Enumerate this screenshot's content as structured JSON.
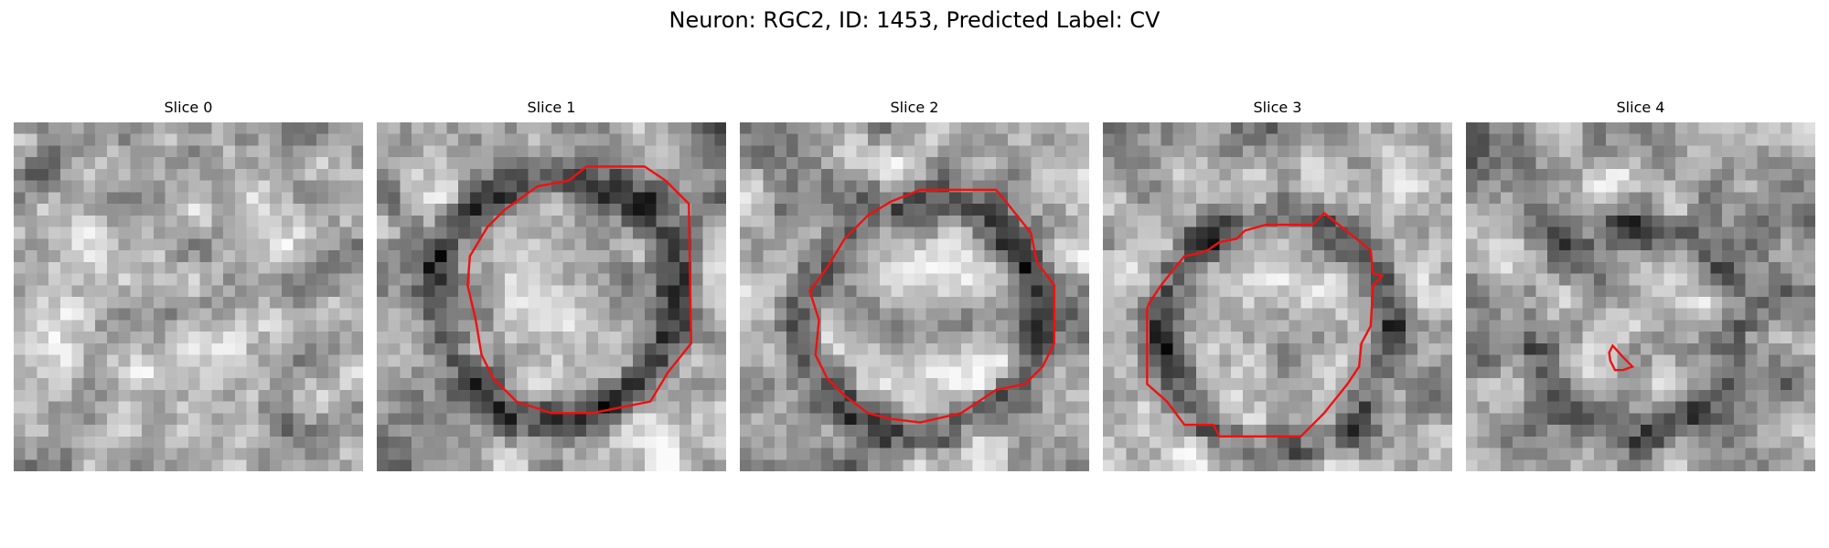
{
  "figure": {
    "title": "Neuron: RGC2, ID: 1453, Predicted Label: CV"
  },
  "style": {
    "contour_color": "#ee1111",
    "colormap": "gray"
  },
  "panels": [
    {
      "title": "Slice 0",
      "image": {
        "rows": 30,
        "cols": 30,
        "seed": 11,
        "ring": null,
        "mean": 0.66
      },
      "contour": []
    },
    {
      "title": "Slice 1",
      "image": {
        "rows": 30,
        "cols": 30,
        "seed": 23,
        "ring": {
          "cx": 14.8,
          "cy": 14.5,
          "r": 10.5,
          "dark": 0.45
        },
        "mean": 0.66
      },
      "contour": [
        [
          18.0,
          3.8
        ],
        [
          23.0,
          3.8
        ],
        [
          24.8,
          5.0
        ],
        [
          26.8,
          7.0
        ],
        [
          27.0,
          19.0
        ],
        [
          25.0,
          21.5
        ],
        [
          23.5,
          24.0
        ],
        [
          21.0,
          24.5
        ],
        [
          18.5,
          25.0
        ],
        [
          15.0,
          25.0
        ],
        [
          12.0,
          24.0
        ],
        [
          10.0,
          22.0
        ],
        [
          9.0,
          20.0
        ],
        [
          8.5,
          17.0
        ],
        [
          7.8,
          14.0
        ],
        [
          8.0,
          11.5
        ],
        [
          9.5,
          9.0
        ],
        [
          11.0,
          7.5
        ],
        [
          13.8,
          5.5
        ],
        [
          16.5,
          5.0
        ]
      ]
    },
    {
      "title": "Slice 2",
      "image": {
        "rows": 30,
        "cols": 30,
        "seed": 37,
        "ring": {
          "cx": 15.0,
          "cy": 16.3,
          "r": 10.3,
          "dark": 0.4
        },
        "mean": 0.66
      },
      "contour": [
        [
          15.5,
          5.8
        ],
        [
          22.0,
          5.8
        ],
        [
          23.0,
          7.0
        ],
        [
          25.0,
          9.5
        ],
        [
          25.5,
          12.0
        ],
        [
          27.0,
          14.0
        ],
        [
          27.0,
          19.0
        ],
        [
          26.0,
          21.0
        ],
        [
          24.5,
          22.5
        ],
        [
          22.0,
          23.0
        ],
        [
          19.0,
          25.0
        ],
        [
          15.5,
          25.8
        ],
        [
          13.0,
          25.5
        ],
        [
          11.0,
          25.0
        ],
        [
          9.0,
          23.5
        ],
        [
          7.5,
          22.0
        ],
        [
          6.5,
          20.0
        ],
        [
          6.8,
          17.0
        ],
        [
          6.0,
          14.5
        ],
        [
          7.5,
          12.5
        ],
        [
          9.0,
          10.0
        ],
        [
          11.0,
          8.0
        ],
        [
          13.0,
          6.8
        ]
      ]
    },
    {
      "title": "Slice 3",
      "image": {
        "rows": 30,
        "cols": 30,
        "seed": 53,
        "ring": {
          "cx": 14.5,
          "cy": 17.5,
          "r": 10.0,
          "dark": 0.4
        },
        "mean": 0.7
      },
      "contour": [
        [
          19.0,
          7.8
        ],
        [
          23.0,
          11.0
        ],
        [
          23.2,
          13.0
        ],
        [
          24.0,
          13.2
        ],
        [
          23.2,
          14.0
        ],
        [
          23.0,
          17.5
        ],
        [
          22.2,
          19.0
        ],
        [
          22.0,
          21.0
        ],
        [
          21.0,
          22.5
        ],
        [
          19.0,
          25.0
        ],
        [
          17.0,
          27.0
        ],
        [
          10.0,
          27.0
        ],
        [
          9.5,
          26.0
        ],
        [
          7.0,
          26.0
        ],
        [
          5.5,
          24.0
        ],
        [
          3.8,
          22.5
        ],
        [
          3.8,
          16.0
        ],
        [
          4.0,
          15.5
        ],
        [
          5.0,
          14.0
        ],
        [
          7.0,
          11.5
        ],
        [
          8.0,
          11.3
        ],
        [
          9.0,
          11.0
        ],
        [
          10.0,
          10.3
        ],
        [
          11.5,
          10.0
        ],
        [
          12.2,
          9.3
        ],
        [
          14.0,
          8.8
        ],
        [
          18.0,
          8.8
        ]
      ]
    },
    {
      "title": "Slice 4",
      "image": {
        "rows": 30,
        "cols": 30,
        "seed": 71,
        "ring": {
          "cx": 14.0,
          "cy": 17.0,
          "r": 9.0,
          "dark": 0.3
        },
        "mean": 0.62
      },
      "contour": [
        [
          12.6,
          19.2
        ],
        [
          13.5,
          20.2
        ],
        [
          14.3,
          21.0
        ],
        [
          13.5,
          21.3
        ],
        [
          12.8,
          21.3
        ],
        [
          12.4,
          20.5
        ],
        [
          12.3,
          19.8
        ]
      ]
    }
  ]
}
